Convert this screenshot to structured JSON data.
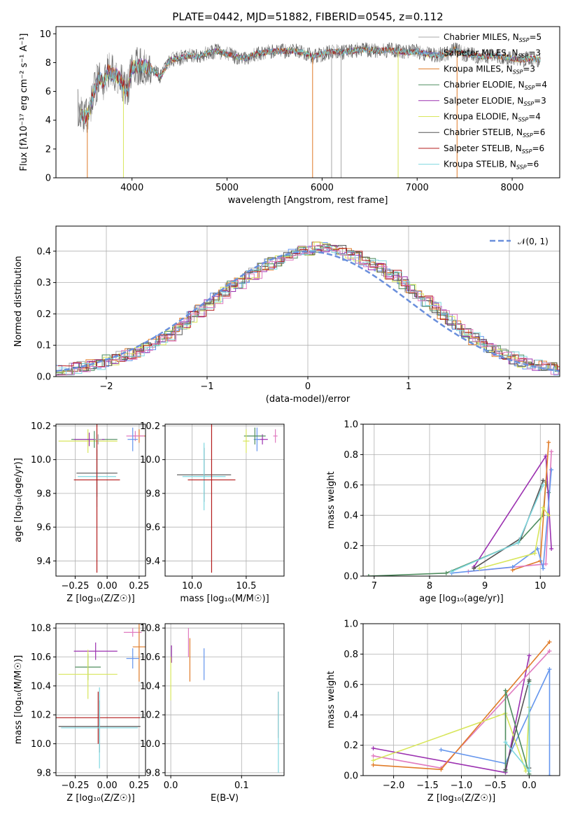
{
  "colors": {
    "Chabrier MILES": "#a8a8a8",
    "Salpeter MILES": "#6495ed",
    "Kroupa MILES": "#e07b28",
    "Chabrier ELODIE": "#4e8c5e",
    "Salpeter ELODIE": "#9b30b0",
    "Kroupa ELODIE": "#d8e65c",
    "Chabrier STELIB": "#555555",
    "Salpeter STELIB": "#b31b1b",
    "Kroupa STELIB": "#7fd8e0",
    "pink": "#e07bc0",
    "gaussian": "#6a8fdc"
  },
  "chart_data": [
    {
      "id": "spectrum",
      "type": "line",
      "title": "PLATE=0442, MJD=51882, FIBERID=0545, z=0.112",
      "xlabel": "wavelength [Angstrom, rest frame]",
      "ylabel": "Flux [fλ10⁻¹⁷ erg cm⁻² s⁻¹ A⁻¹]",
      "xlim": [
        3200,
        8500
      ],
      "ylim": [
        0,
        10.5
      ],
      "xticks": [
        4000,
        5000,
        6000,
        7000,
        8000
      ],
      "yticks": [
        0,
        2,
        4,
        6,
        8,
        10
      ],
      "legend": "right",
      "series": [
        {
          "name": "Chabrier MILES, N",
          "sub": "SSP",
          "eq": "=5",
          "color": "Chabrier MILES"
        },
        {
          "name": "Salpeter MILES, N",
          "sub": "SSP",
          "eq": "=3",
          "color": "Salpeter MILES"
        },
        {
          "name": "Kroupa MILES, N",
          "sub": "SSP",
          "eq": "=3",
          "color": "Kroupa MILES"
        },
        {
          "name": "Chabrier ELODIE, N",
          "sub": "SSP",
          "eq": "=4",
          "color": "Chabrier ELODIE"
        },
        {
          "name": "Salpeter ELODIE, N",
          "sub": "SSP",
          "eq": "=3",
          "color": "Salpeter ELODIE"
        },
        {
          "name": "Kroupa ELODIE, N",
          "sub": "SSP",
          "eq": "=4",
          "color": "Kroupa ELODIE"
        },
        {
          "name": "Chabrier STELIB, N",
          "sub": "SSP",
          "eq": "=6",
          "color": "Chabrier STELIB"
        },
        {
          "name": "Salpeter STELIB, N",
          "sub": "SSP",
          "eq": "=6",
          "color": "Salpeter STELIB"
        },
        {
          "name": "Kroupa STELIB, N",
          "sub": "SSP",
          "eq": "=6",
          "color": "Kroupa STELIB"
        }
      ],
      "envelope": [
        [
          3430,
          4.9
        ],
        [
          3450,
          4.4
        ],
        [
          3500,
          4.2
        ],
        [
          3550,
          4.5
        ],
        [
          3600,
          6.0
        ],
        [
          3650,
          7.0
        ],
        [
          3700,
          6.6
        ],
        [
          3750,
          7.4
        ],
        [
          3800,
          7.2
        ],
        [
          3850,
          7.1
        ],
        [
          3900,
          6.5
        ],
        [
          3950,
          6.0
        ],
        [
          4000,
          7.7
        ],
        [
          4100,
          7.8
        ],
        [
          4200,
          7.6
        ],
        [
          4300,
          7.0
        ],
        [
          4400,
          8.2
        ],
        [
          4500,
          8.3
        ],
        [
          4600,
          8.5
        ],
        [
          4700,
          8.4
        ],
        [
          4800,
          8.7
        ],
        [
          4900,
          8.8
        ],
        [
          5000,
          8.6
        ],
        [
          5100,
          8.4
        ],
        [
          5200,
          8.3
        ],
        [
          5300,
          8.6
        ],
        [
          5400,
          8.7
        ],
        [
          5500,
          8.8
        ],
        [
          5600,
          8.8
        ],
        [
          5700,
          8.8
        ],
        [
          5800,
          8.7
        ],
        [
          5900,
          8.4
        ],
        [
          6000,
          8.6
        ],
        [
          6100,
          8.8
        ],
        [
          6200,
          8.7
        ],
        [
          6300,
          8.8
        ],
        [
          6400,
          8.9
        ],
        [
          6500,
          8.9
        ],
        [
          6600,
          8.8
        ],
        [
          6700,
          8.9
        ],
        [
          6800,
          8.8
        ],
        [
          6900,
          8.7
        ],
        [
          7000,
          8.8
        ],
        [
          7100,
          8.6
        ],
        [
          7200,
          8.5
        ],
        [
          7300,
          8.6
        ],
        [
          7400,
          8.9
        ],
        [
          7500,
          8.6
        ],
        [
          7600,
          8.5
        ],
        [
          7700,
          8.4
        ],
        [
          7800,
          8.5
        ],
        [
          7900,
          8.4
        ],
        [
          8000,
          8.3
        ],
        [
          8100,
          8.2
        ],
        [
          8200,
          8.3
        ],
        [
          8300,
          8.2
        ]
      ]
    },
    {
      "id": "residuals",
      "type": "step",
      "xlabel": "(data-model)/error",
      "ylabel": "Normed distribution",
      "xlim": [
        -2.5,
        2.5
      ],
      "ylim": [
        0,
        0.48
      ],
      "xticks": [
        -2,
        -1,
        0,
        1,
        2
      ],
      "yticks": [
        0.0,
        0.1,
        0.2,
        0.3,
        0.4
      ],
      "legend_label": "𝒩(0, 1)",
      "bin_width": 0.1,
      "hist_base": [
        0.02,
        0.02,
        0.025,
        0.03,
        0.035,
        0.04,
        0.05,
        0.055,
        0.065,
        0.07,
        0.08,
        0.09,
        0.1,
        0.115,
        0.13,
        0.15,
        0.17,
        0.19,
        0.21,
        0.23,
        0.25,
        0.27,
        0.29,
        0.3,
        0.32,
        0.33,
        0.35,
        0.36,
        0.37,
        0.38,
        0.39,
        0.4,
        0.4,
        0.41,
        0.41,
        0.4,
        0.4,
        0.39,
        0.38,
        0.37,
        0.36,
        0.35,
        0.33,
        0.32,
        0.3,
        0.28,
        0.26,
        0.24,
        0.22,
        0.2,
        0.18,
        0.16,
        0.14,
        0.12,
        0.11,
        0.09,
        0.08,
        0.07,
        0.06,
        0.05,
        0.04,
        0.035,
        0.03,
        0.025,
        0.02
      ]
    },
    {
      "id": "age_Z",
      "type": "errorbar",
      "xlabel": "Z [log₁₀(Z/Z☉)]",
      "ylabel": "age  [log₁₀(age/yr)]",
      "xlim": [
        -0.4,
        0.3
      ],
      "ylim": [
        9.31,
        10.21
      ],
      "xticks": [
        -0.25,
        0.0,
        0.25
      ],
      "yticks": [
        9.4,
        9.6,
        9.8,
        10.0,
        10.2
      ],
      "points": [
        {
          "c": "Kroupa MILES",
          "x": 0.25,
          "y": 10.14,
          "xe": 0.05,
          "ye": 0.04
        },
        {
          "c": "pink",
          "x": 0.22,
          "y": 10.14,
          "xe": 0.07,
          "ye": 0.03
        },
        {
          "c": "Salpeter MILES",
          "x": 0.2,
          "y": 10.12,
          "xe": 0.04,
          "ye": 0.07
        },
        {
          "c": "Kroupa ELODIE",
          "x": -0.15,
          "y": 10.11,
          "xe": 0.23,
          "ye": 0.07
        },
        {
          "c": "Chabrier ELODIE",
          "x": -0.1,
          "y": 10.12,
          "xe": 0.18,
          "ye": 0.05
        },
        {
          "c": "Salpeter ELODIE",
          "x": -0.14,
          "y": 10.12,
          "xe": 0.12,
          "ye": 0.04
        },
        {
          "c": "Chabrier STELIB",
          "x": -0.08,
          "y": 9.92,
          "xe": 0.16,
          "ye": 0.14
        },
        {
          "c": "Kroupa STELIB",
          "x": -0.08,
          "y": 9.9,
          "xe": 0.15,
          "ye": 0.18
        },
        {
          "c": "Salpeter STELIB",
          "x": -0.08,
          "y": 9.88,
          "xe": 0.18,
          "ye": 0.55
        },
        {
          "c": "Chabrier MILES",
          "x": -0.07,
          "y": 10.12,
          "xe": 0.03,
          "ye": 0.03
        }
      ]
    },
    {
      "id": "age_mass",
      "type": "errorbar",
      "xlabel": "mass [log₁₀(M/M☉)]",
      "ylabel": "",
      "xlim": [
        9.75,
        10.85
      ],
      "ylim": [
        9.31,
        10.21
      ],
      "xticks": [
        10.0,
        10.5
      ],
      "yticks": [
        9.4,
        9.6,
        9.8,
        10.0,
        10.2
      ],
      "points": [
        {
          "c": "pink",
          "x": 10.77,
          "y": 10.14,
          "xe": 0.02,
          "ye": 0.04
        },
        {
          "c": "Salpeter ELODIE",
          "x": 10.65,
          "y": 10.12,
          "xe": 0.05,
          "ye": 0.03
        },
        {
          "c": "Salpeter MILES",
          "x": 10.6,
          "y": 10.12,
          "xe": 0.03,
          "ye": 0.07
        },
        {
          "c": "Chabrier ELODIE",
          "x": 10.58,
          "y": 10.14,
          "xe": 0.1,
          "ye": 0.05
        },
        {
          "c": "Kroupa ELODIE",
          "x": 10.5,
          "y": 10.11,
          "xe": 0.03,
          "ye": 0.07
        },
        {
          "c": "Chabrier STELIB",
          "x": 10.11,
          "y": 9.91,
          "xe": 0.25,
          "ye": 0.16
        },
        {
          "c": "Kroupa STELIB",
          "x": 10.11,
          "y": 9.9,
          "xe": 0.2,
          "ye": 0.2
        },
        {
          "c": "Salpeter STELIB",
          "x": 10.18,
          "y": 9.88,
          "xe": 0.22,
          "ye": 0.55
        }
      ]
    },
    {
      "id": "mw_age",
      "type": "line",
      "xlabel": "age  [log₁₀(age/yr)]",
      "ylabel": "mass weight",
      "xlim": [
        6.8,
        10.35
      ],
      "ylim": [
        0,
        1.0
      ],
      "xticks": [
        7,
        8,
        9,
        10
      ],
      "yticks": [
        0.0,
        0.2,
        0.4,
        0.6,
        0.8,
        1.0
      ],
      "series": [
        {
          "c": "Chabrier ELODIE",
          "pts": [
            [
              6.9,
              0.0
            ],
            [
              8.3,
              0.02
            ],
            [
              9.6,
              0.22
            ],
            [
              10.05,
              0.4
            ],
            [
              10.1,
              0.62
            ],
            [
              10.15,
              0.55
            ]
          ]
        },
        {
          "c": "Salpeter ELODIE",
          "pts": [
            [
              8.8,
              0.06
            ],
            [
              10.1,
              0.79
            ],
            [
              10.2,
              0.18
            ]
          ]
        },
        {
          "c": "Kroupa MILES",
          "pts": [
            [
              9.5,
              0.04
            ],
            [
              10.0,
              0.1
            ],
            [
              10.15,
              0.88
            ]
          ]
        },
        {
          "c": "pink",
          "pts": [
            [
              8.7,
              0.03
            ],
            [
              10.1,
              0.08
            ],
            [
              10.2,
              0.82
            ]
          ]
        },
        {
          "c": "Salpeter MILES",
          "pts": [
            [
              8.4,
              0.02
            ],
            [
              9.5,
              0.06
            ],
            [
              9.95,
              0.18
            ],
            [
              10.05,
              0.05
            ],
            [
              10.2,
              0.7
            ]
          ]
        },
        {
          "c": "Kroupa ELODIE",
          "pts": [
            [
              8.9,
              0.05
            ],
            [
              9.9,
              0.15
            ],
            [
              10.05,
              0.45
            ],
            [
              10.15,
              0.4
            ]
          ]
        },
        {
          "c": "Chabrier STELIB",
          "pts": [
            [
              8.8,
              0.05
            ],
            [
              9.65,
              0.25
            ],
            [
              10.05,
              0.63
            ]
          ]
        },
        {
          "c": "Kroupa STELIB",
          "pts": [
            [
              8.4,
              0.03
            ],
            [
              9.6,
              0.22
            ],
            [
              10.05,
              0.6
            ]
          ]
        }
      ]
    },
    {
      "id": "mass_Z",
      "type": "errorbar",
      "xlabel": "Z [log₁₀(Z/Z☉)]",
      "ylabel": "mass [log₁₀(M/M☉)]",
      "xlim": [
        -0.4,
        0.3
      ],
      "ylim": [
        9.78,
        10.83
      ],
      "xticks": [
        -0.25,
        0.0,
        0.25
      ],
      "yticks": [
        9.8,
        10.0,
        10.2,
        10.4,
        10.6,
        10.8
      ],
      "points": [
        {
          "c": "pink",
          "x": 0.2,
          "y": 10.77,
          "xe": 0.07,
          "ye": 0.03
        },
        {
          "c": "Kroupa MILES",
          "x": 0.25,
          "y": 10.67,
          "xe": 0.05,
          "ye": 0.24
        },
        {
          "c": "Salpeter ELODIE",
          "x": -0.09,
          "y": 10.64,
          "xe": 0.17,
          "ye": 0.06
        },
        {
          "c": "Salpeter MILES",
          "x": 0.2,
          "y": 10.59,
          "xe": 0.05,
          "ye": 0.07
        },
        {
          "c": "Chabrier ELODIE",
          "x": -0.15,
          "y": 10.53,
          "xe": 0.1,
          "ye": 0.09
        },
        {
          "c": "Kroupa ELODIE",
          "x": -0.15,
          "y": 10.48,
          "xe": 0.23,
          "ye": 0.17
        },
        {
          "c": "Salpeter STELIB",
          "x": -0.07,
          "y": 10.18,
          "xe": 0.33,
          "ye": 0.18
        },
        {
          "c": "Chabrier STELIB",
          "x": -0.06,
          "y": 10.12,
          "xe": 0.32,
          "ye": 0.18
        },
        {
          "c": "Kroupa STELIB",
          "x": -0.06,
          "y": 10.11,
          "xe": 0.3,
          "ye": 0.28
        }
      ]
    },
    {
      "id": "mass_ebv",
      "type": "errorbar",
      "xlabel": "E(B-V)",
      "ylabel": "",
      "xlim": [
        -0.008,
        0.16
      ],
      "ylim": [
        9.78,
        10.83
      ],
      "xticks": [
        0.0,
        0.1
      ],
      "yticks": [
        9.8,
        10.0,
        10.2,
        10.4,
        10.6,
        10.8
      ],
      "points": [
        {
          "c": "pink",
          "x": 0.025,
          "y": 10.7,
          "xe": 0.0,
          "ye": 0.1
        },
        {
          "c": "Kroupa MILES",
          "x": 0.027,
          "y": 10.58,
          "xe": 0.0,
          "ye": 0.15
        },
        {
          "c": "Salpeter MILES",
          "x": 0.047,
          "y": 10.55,
          "xe": 0.0,
          "ye": 0.11
        },
        {
          "c": "Salpeter ELODIE",
          "x": 0.001,
          "y": 10.62,
          "xe": 0.0,
          "ye": 0.06
        },
        {
          "c": "Kroupa ELODIE",
          "x": 0.0,
          "y": 10.45,
          "xe": 0.0,
          "ye": 0.15
        },
        {
          "c": "Salpeter STELIB",
          "x": 0.152,
          "y": 10.2,
          "xe": 0.0,
          "ye": 0.16
        },
        {
          "c": "Kroupa STELIB",
          "x": 0.152,
          "y": 10.08,
          "xe": 0.0,
          "ye": 0.28
        }
      ]
    },
    {
      "id": "mw_Z",
      "type": "line",
      "xlabel": "Z [log₁₀(Z/Z☉)]",
      "ylabel": "mass weight",
      "xlim": [
        -2.45,
        0.45
      ],
      "ylim": [
        0,
        1.0
      ],
      "xticks": [
        -2.0,
        -1.5,
        -1.0,
        -0.5,
        0.0
      ],
      "yticks": [
        0.0,
        0.2,
        0.4,
        0.6,
        0.8,
        1.0
      ],
      "series": [
        {
          "c": "Salpeter ELODIE",
          "pts": [
            [
              -2.3,
              0.18
            ],
            [
              -0.35,
              0.02
            ],
            [
              0.0,
              0.79
            ]
          ]
        },
        {
          "c": "pink",
          "pts": [
            [
              -2.3,
              0.13
            ],
            [
              -1.3,
              0.05
            ],
            [
              0.3,
              0.82
            ]
          ]
        },
        {
          "c": "Kroupa MILES",
          "pts": [
            [
              -2.3,
              0.07
            ],
            [
              -1.3,
              0.04
            ],
            [
              0.3,
              0.88
            ]
          ]
        },
        {
          "c": "Salpeter MILES",
          "pts": [
            [
              -1.3,
              0.17
            ],
            [
              -0.35,
              0.08
            ],
            [
              0.3,
              0.7
            ],
            [
              0.3,
              0.0
            ]
          ]
        },
        {
          "c": "Kroupa ELODIE",
          "pts": [
            [
              -2.3,
              0.1
            ],
            [
              -0.35,
              0.41
            ],
            [
              -0.05,
              0.03
            ],
            [
              0.0,
              0.45
            ]
          ]
        },
        {
          "c": "Chabrier ELODIE",
          "pts": [
            [
              -0.35,
              0.03
            ],
            [
              -0.35,
              0.56
            ],
            [
              0.0,
              0.01
            ],
            [
              0.0,
              0.62
            ]
          ]
        },
        {
          "c": "Chabrier STELIB",
          "pts": [
            [
              -0.35,
              0.04
            ],
            [
              0.0,
              0.63
            ],
            [
              0.0,
              0.05
            ]
          ]
        },
        {
          "c": "Kroupa STELIB",
          "pts": [
            [
              -0.35,
              0.22
            ],
            [
              0.0,
              0.03
            ],
            [
              0.0,
              0.6
            ]
          ]
        }
      ]
    }
  ]
}
